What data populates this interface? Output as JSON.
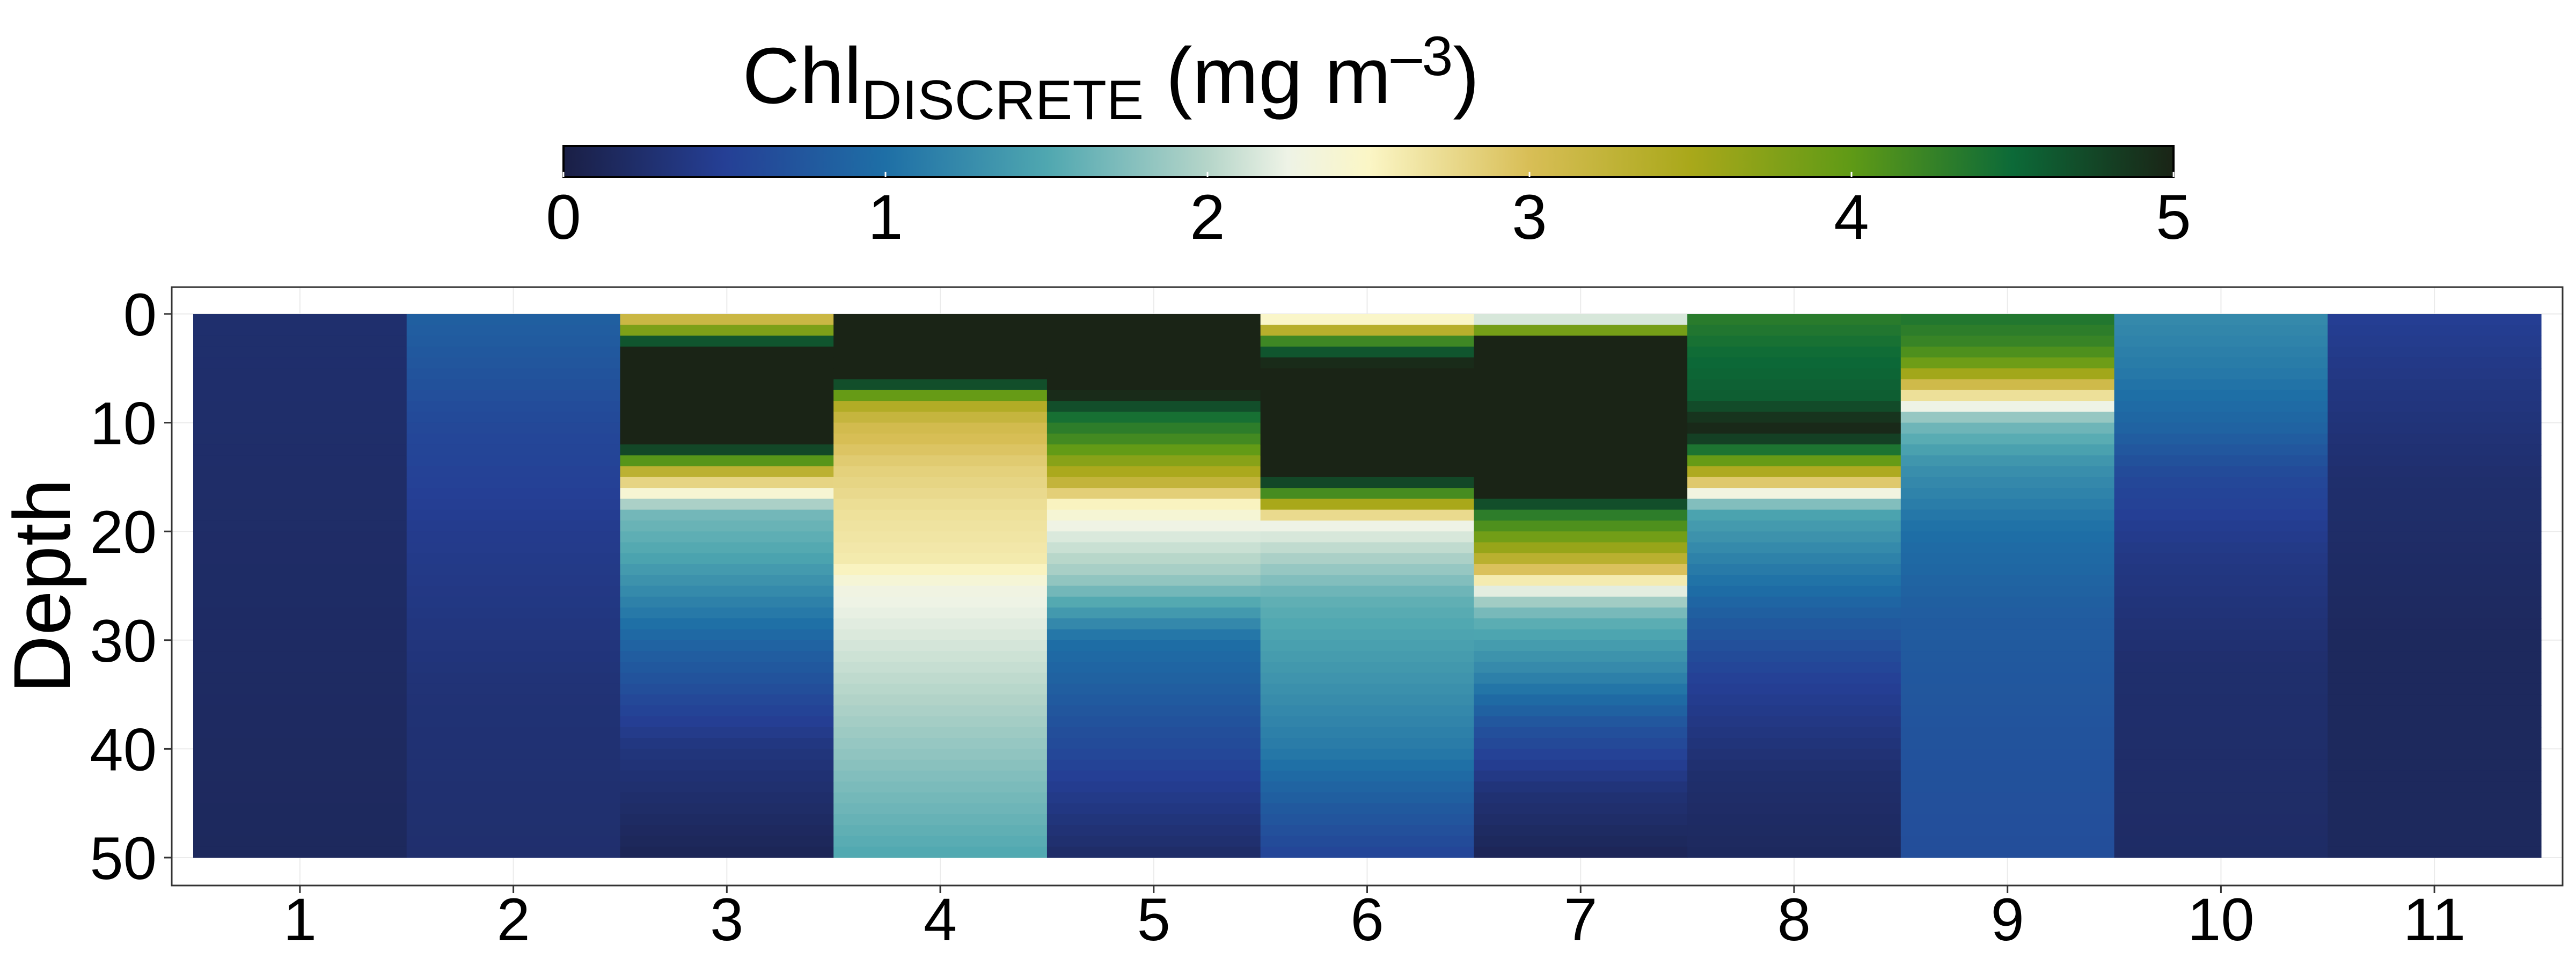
{
  "colorbar": {
    "title_main": "Chl",
    "title_sub": "DISCRETE",
    "title_unit_pre": " (mg m",
    "title_unit_sup": "–3",
    "title_unit_post": ")",
    "ticks": [
      "0",
      "1",
      "2",
      "3",
      "4",
      "5"
    ],
    "range": [
      0,
      5
    ],
    "stops": [
      {
        "v": 0.0,
        "c": "#1a1f45"
      },
      {
        "v": 0.5,
        "c": "#253f95"
      },
      {
        "v": 1.0,
        "c": "#1e6fa6"
      },
      {
        "v": 1.5,
        "c": "#4fa7b0"
      },
      {
        "v": 2.0,
        "c": "#b5d5c9"
      },
      {
        "v": 2.25,
        "c": "#eef3e6"
      },
      {
        "v": 2.5,
        "c": "#fbf6c6"
      },
      {
        "v": 3.0,
        "c": "#d8be56"
      },
      {
        "v": 3.5,
        "c": "#a9a81a"
      },
      {
        "v": 4.0,
        "c": "#5f9a16"
      },
      {
        "v": 4.5,
        "c": "#0c6a38"
      },
      {
        "v": 5.0,
        "c": "#1a2416"
      }
    ]
  },
  "chart_data": {
    "type": "heatmap",
    "ylabel": "Depth",
    "xlabel": "",
    "x_categories": [
      "1",
      "2",
      "3",
      "4",
      "5",
      "6",
      "7",
      "8",
      "9",
      "10",
      "11"
    ],
    "y_ticks": [
      "0",
      "10",
      "20",
      "30",
      "40",
      "50"
    ],
    "ylim": [
      0,
      50
    ],
    "y_reversed": true,
    "depth_step": 1,
    "profiles": [
      {
        "station": "1",
        "points": [
          [
            0,
            0.25
          ],
          [
            50,
            0.15
          ]
        ]
      },
      {
        "station": "2",
        "points": [
          [
            0,
            0.85
          ],
          [
            10,
            0.6
          ],
          [
            20,
            0.45
          ],
          [
            35,
            0.3
          ],
          [
            50,
            0.25
          ]
        ]
      },
      {
        "station": "3",
        "points": [
          [
            0,
            3.0
          ],
          [
            1,
            3.3
          ],
          [
            2,
            4.3
          ],
          [
            3,
            5.0
          ],
          [
            12,
            5.0
          ],
          [
            13,
            4.5
          ],
          [
            14,
            3.6
          ],
          [
            15,
            3.0
          ],
          [
            16,
            2.6
          ],
          [
            17,
            2.2
          ],
          [
            18,
            1.7
          ],
          [
            22,
            1.5
          ],
          [
            30,
            0.9
          ],
          [
            40,
            0.35
          ],
          [
            50,
            0.1
          ]
        ]
      },
      {
        "station": "4",
        "points": [
          [
            0,
            5.0
          ],
          [
            6,
            5.0
          ],
          [
            7,
            4.4
          ],
          [
            8,
            3.5
          ],
          [
            10,
            3.1
          ],
          [
            14,
            2.85
          ],
          [
            18,
            2.7
          ],
          [
            23,
            2.6
          ],
          [
            25,
            2.3
          ],
          [
            35,
            2.0
          ],
          [
            50,
            1.5
          ]
        ]
      },
      {
        "station": "5",
        "points": [
          [
            0,
            5.0
          ],
          [
            7,
            5.0
          ],
          [
            8,
            4.9
          ],
          [
            9,
            4.5
          ],
          [
            12,
            4.1
          ],
          [
            14,
            3.6
          ],
          [
            16,
            3.1
          ],
          [
            17,
            2.6
          ],
          [
            18,
            2.45
          ],
          [
            20,
            2.2
          ],
          [
            24,
            1.9
          ],
          [
            26,
            1.6
          ],
          [
            30,
            1.0
          ],
          [
            40,
            0.6
          ],
          [
            50,
            0.2
          ]
        ]
      },
      {
        "station": "6",
        "points": [
          [
            0,
            2.25
          ],
          [
            1,
            2.7
          ],
          [
            2,
            4.0
          ],
          [
            3,
            4.4
          ],
          [
            4,
            4.9
          ],
          [
            5,
            5.0
          ],
          [
            15,
            5.0
          ],
          [
            16,
            4.5
          ],
          [
            17,
            3.8
          ],
          [
            18,
            3.2
          ],
          [
            19,
            2.3
          ],
          [
            22,
            2.0
          ],
          [
            26,
            1.6
          ],
          [
            40,
            1.1
          ],
          [
            45,
            0.8
          ],
          [
            50,
            0.55
          ]
        ]
      },
      {
        "station": "7",
        "points": [
          [
            0,
            1.6
          ],
          [
            1,
            2.7
          ],
          [
            2,
            5.0
          ],
          [
            17,
            5.0
          ],
          [
            18,
            4.4
          ],
          [
            20,
            4.0
          ],
          [
            22,
            3.5
          ],
          [
            24,
            2.8
          ],
          [
            25,
            2.4
          ],
          [
            26,
            2.0
          ],
          [
            28,
            1.6
          ],
          [
            33,
            1.2
          ],
          [
            38,
            0.7
          ],
          [
            44,
            0.3
          ],
          [
            50,
            0.1
          ]
        ]
      },
      {
        "station": "8",
        "points": [
          [
            0,
            4.3
          ],
          [
            4,
            4.5
          ],
          [
            8,
            4.6
          ],
          [
            9,
            4.85
          ],
          [
            11,
            5.0
          ],
          [
            13,
            4.2
          ],
          [
            15,
            3.2
          ],
          [
            16,
            2.6
          ],
          [
            17,
            2.0
          ],
          [
            18,
            1.5
          ],
          [
            22,
            1.2
          ],
          [
            28,
            0.8
          ],
          [
            34,
            0.5
          ],
          [
            42,
            0.25
          ],
          [
            50,
            0.15
          ]
        ]
      },
      {
        "station": "9",
        "points": [
          [
            0,
            4.4
          ],
          [
            3,
            4.2
          ],
          [
            5,
            3.8
          ],
          [
            6,
            3.3
          ],
          [
            7,
            2.9
          ],
          [
            8,
            2.5
          ],
          [
            9,
            2.0
          ],
          [
            10,
            1.7
          ],
          [
            14,
            1.3
          ],
          [
            20,
            1.0
          ],
          [
            28,
            0.8
          ],
          [
            40,
            0.7
          ],
          [
            50,
            0.65
          ]
        ]
      },
      {
        "station": "10",
        "points": [
          [
            0,
            1.25
          ],
          [
            5,
            1.1
          ],
          [
            10,
            0.9
          ],
          [
            15,
            0.6
          ],
          [
            22,
            0.4
          ],
          [
            32,
            0.25
          ],
          [
            50,
            0.2
          ]
        ]
      },
      {
        "station": "11",
        "points": [
          [
            0,
            0.5
          ],
          [
            5,
            0.4
          ],
          [
            15,
            0.25
          ],
          [
            30,
            0.15
          ],
          [
            50,
            0.15
          ]
        ]
      }
    ]
  }
}
